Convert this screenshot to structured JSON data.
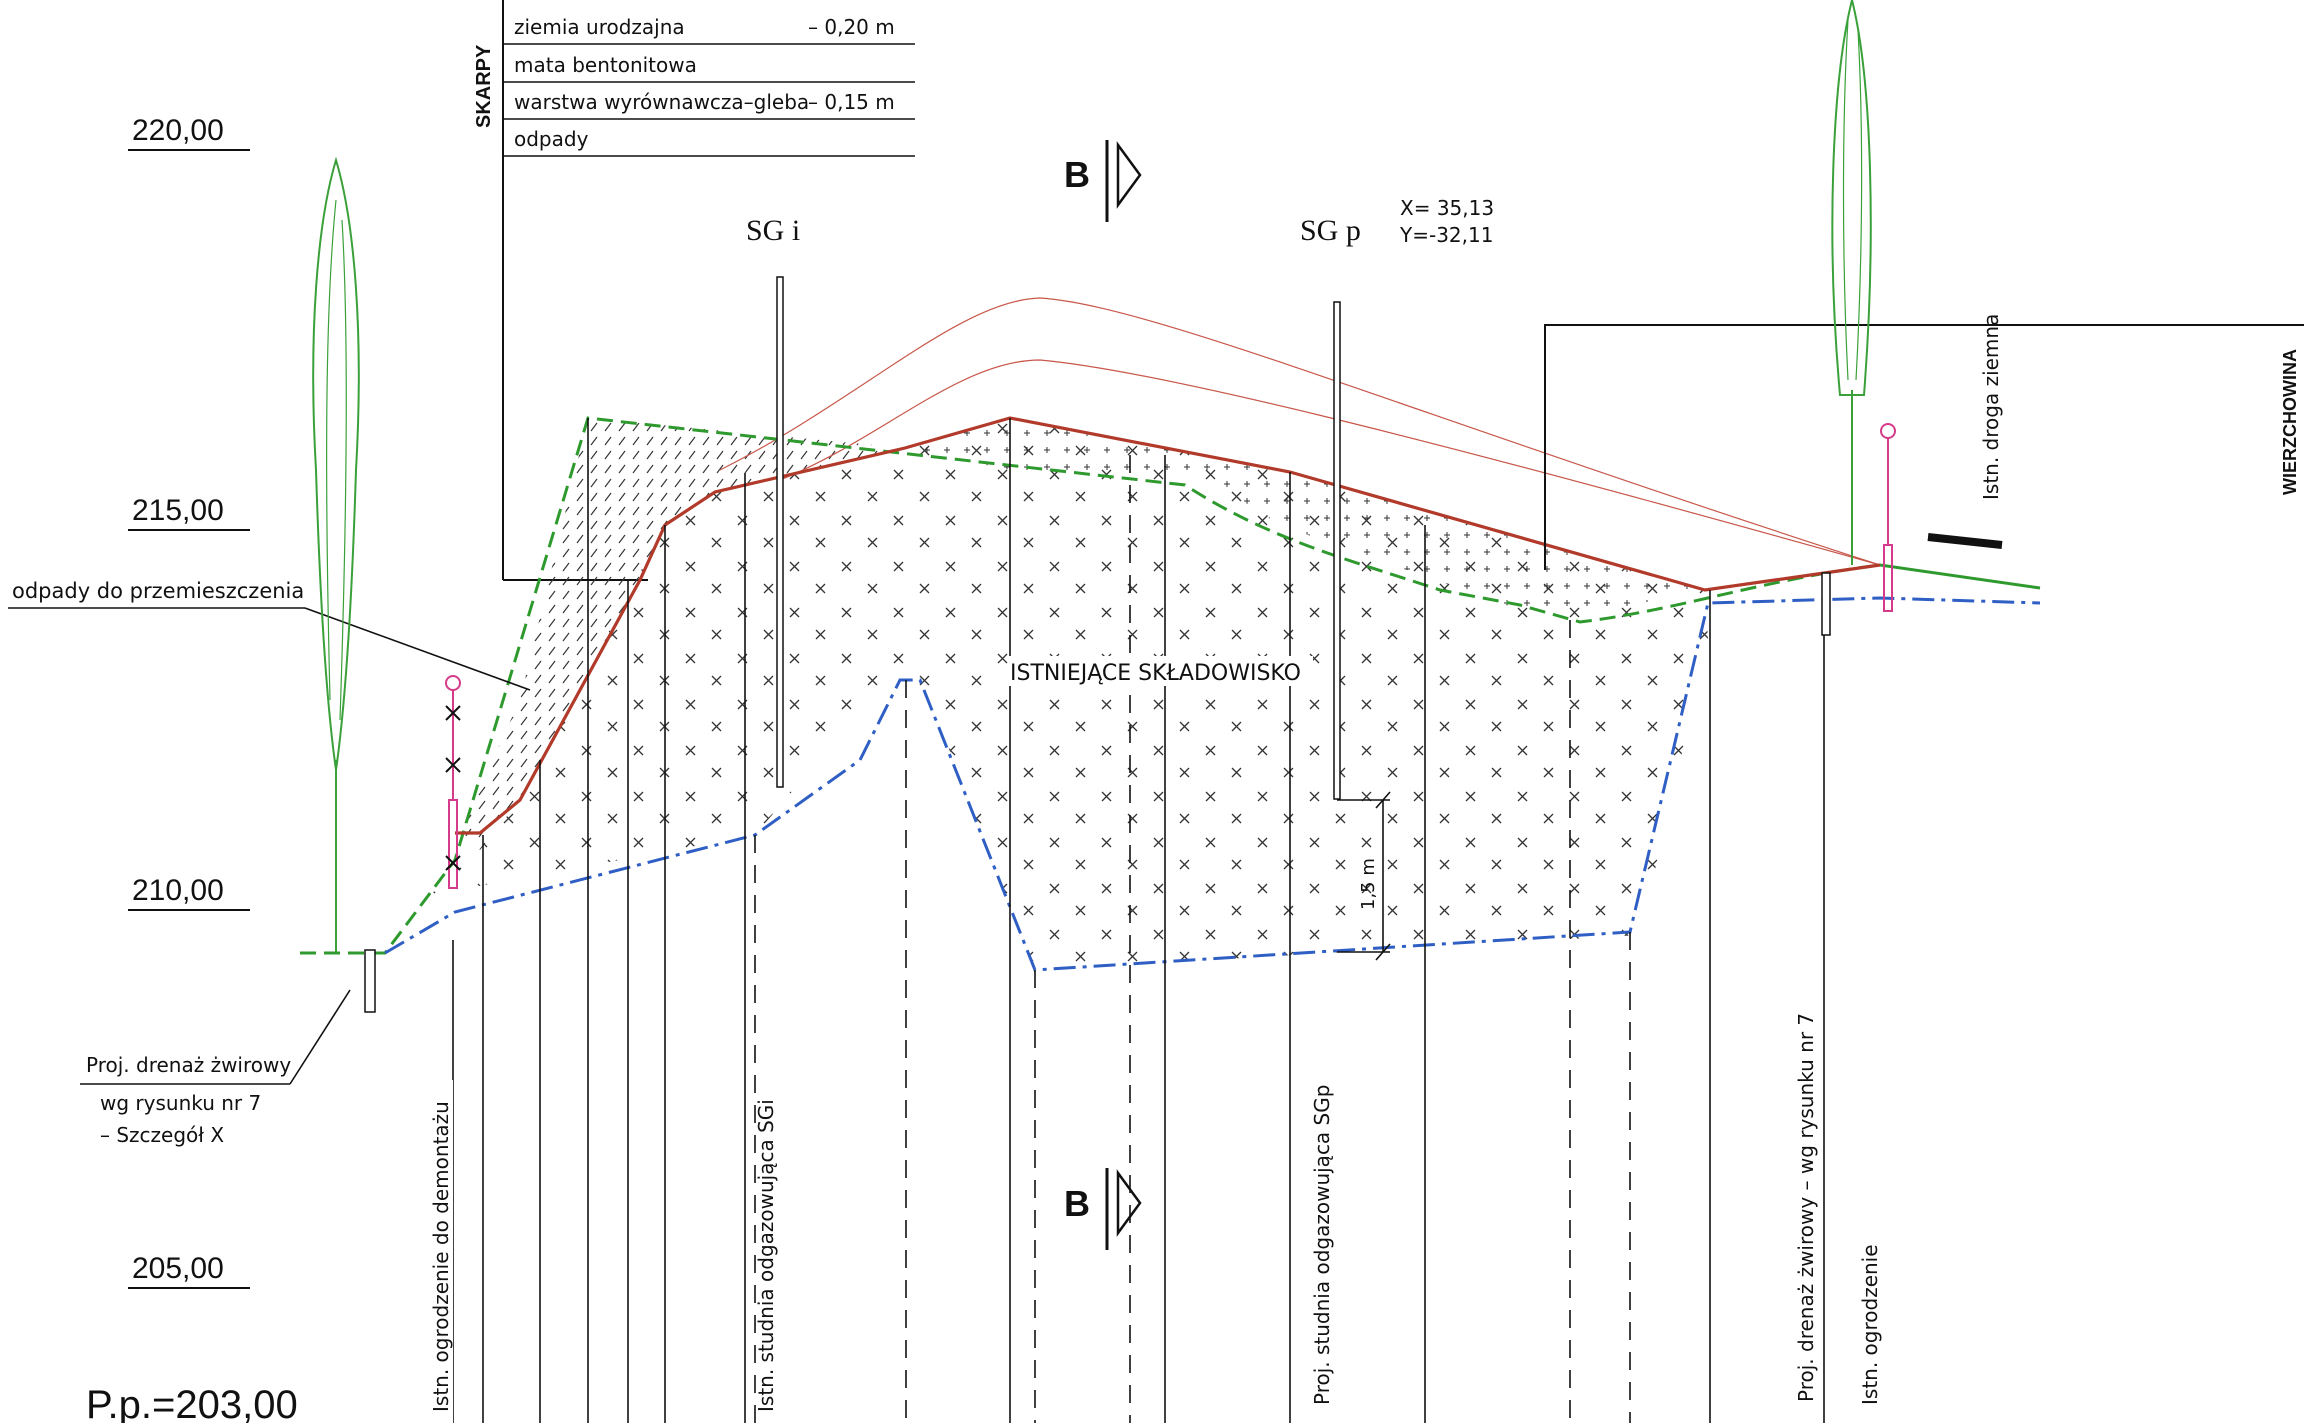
{
  "elevation_labels": [
    "220,00",
    "215,00",
    "210,00",
    "205,00"
  ],
  "base_level": "P.p.=203,00",
  "skarpy_table": {
    "title": "SKARPY",
    "rows": [
      {
        "name": "ziemia urodzajna",
        "value": "– 0,20 m"
      },
      {
        "name": "mata bentonitowa",
        "value": ""
      },
      {
        "name": "warstwa wyrównawcza–gleba",
        "value": "– 0,15 m"
      },
      {
        "name": "odpady",
        "value": ""
      }
    ]
  },
  "section_marker": "B",
  "wells": {
    "sgi": "SG i",
    "sgp": "SG p",
    "sgp_x": "X= 35,13",
    "sgp_y": "Y=-32,11"
  },
  "labels": {
    "odpady": "odpady do przemieszczenia",
    "main": "ISTNIEJĄCE SKŁADOWISKO",
    "wierzchowina": "WIERZCHOWINA",
    "droga": "Istn. droga ziemna",
    "dim_15": "1,5 m",
    "drenaz_left_1": "Proj. drenaż żwirowy",
    "drenaz_left_2": "wg rysunku nr 7",
    "drenaz_left_3": "– Szczegół X"
  },
  "vertical_labels": {
    "ogrodzenie_demontaz": "Istn. ogrodzenie do demontażu",
    "studnia_sgi": "Istn. studnia odgazowująca SGi",
    "studnia_sgp": "Proj. studnia odgazowująca SGp",
    "drenaz_right": "Proj. drenaż żwirowy – wg rysunku nr 7",
    "ogrodzenie": "Istn. ogrodzenie"
  },
  "colors": {
    "red_profile": "#b23a2a",
    "green_dashed": "#2e9a2e",
    "blue_dashdot": "#2f5fc4",
    "tree": "#3aa03a",
    "fence": "#d63a8a"
  }
}
